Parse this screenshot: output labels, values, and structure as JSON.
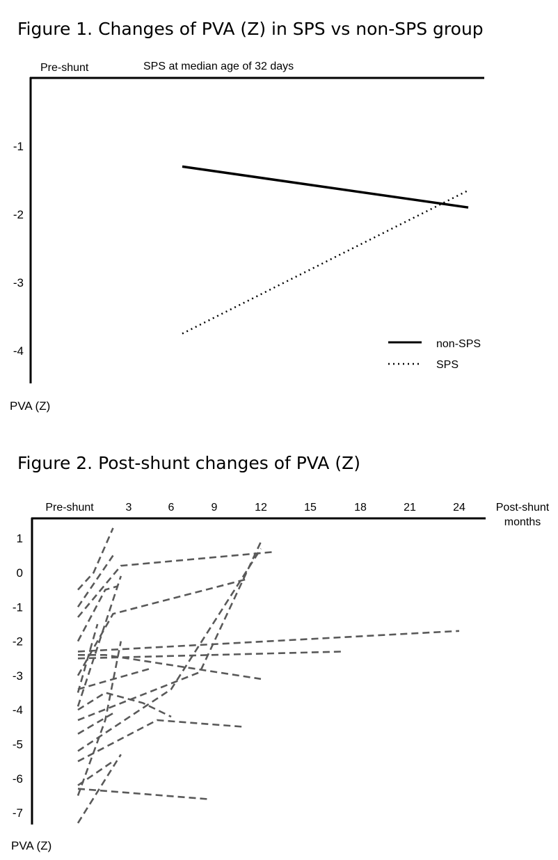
{
  "figure1": {
    "title": "Figure 1. Changes of PVA (Z) in SPS vs non-SPS group"
  },
  "figure2": {
    "title": "Figure 2. Post-shunt changes of PVA (Z)"
  },
  "chart_data": [
    {
      "type": "line",
      "top_labels": [
        "Pre-shunt",
        "SPS at median age of 32 days"
      ],
      "ylabel": "PVA (Z)",
      "y_ticks": [
        -1,
        -2,
        -3,
        -4
      ],
      "ylim": [
        -4.4,
        0.0
      ],
      "grid": false,
      "legend": "bottom-right",
      "series": [
        {
          "name": "non-SPS",
          "style": "solid",
          "points": [
            [
              1,
              -1.3
            ],
            [
              4,
              -1.9
            ]
          ]
        },
        {
          "name": "SPS",
          "style": "dotted",
          "points": [
            [
              1,
              -3.75
            ],
            [
              4,
              -1.65
            ]
          ]
        }
      ]
    },
    {
      "type": "line",
      "x_tick_labels": [
        "Pre-shunt",
        "3",
        "6",
        "9",
        "12",
        "15",
        "18",
        "21",
        "24"
      ],
      "x_ticks": [
        0,
        3,
        6,
        9,
        12,
        15,
        18,
        21,
        24
      ],
      "xlabel": "Post-shunt months",
      "ylabel": "PVA (Z)",
      "y_ticks": [
        1,
        0,
        -1,
        -2,
        -3,
        -4,
        -5,
        -6,
        -7
      ],
      "ylim": [
        -7.3,
        1.6
      ],
      "grid": false,
      "series_style": "dashed",
      "series": [
        {
          "points": [
            [
              -3.5,
              -0.5
            ],
            [
              -1.5,
              0.0
            ],
            [
              1.0,
              1.3
            ]
          ]
        },
        {
          "points": [
            [
              -3.5,
              -1.0
            ],
            [
              1.0,
              0.5
            ]
          ]
        },
        {
          "points": [
            [
              -3.5,
              -1.3
            ],
            [
              2.0,
              0.2
            ],
            [
              12.7,
              0.6
            ]
          ]
        },
        {
          "points": [
            [
              -3.5,
              -2.0
            ],
            [
              0.0,
              -0.5
            ],
            [
              1.5,
              -0.4
            ]
          ]
        },
        {
          "points": [
            [
              -3.5,
              -3.0
            ],
            [
              1.0,
              -1.2
            ],
            [
              11.0,
              -0.2
            ]
          ]
        },
        {
          "points": [
            [
              -3.5,
              -3.5
            ],
            [
              -1.0,
              -1.5
            ]
          ]
        },
        {
          "points": [
            [
              -3.5,
              -3.9
            ],
            [
              2.0,
              -0.1
            ]
          ]
        },
        {
          "points": [
            [
              -3.5,
              -4.3
            ],
            [
              8.0,
              -2.9
            ],
            [
              12.0,
              0.9
            ]
          ]
        },
        {
          "points": [
            [
              -3.5,
              -2.3
            ],
            [
              24.0,
              -1.7
            ]
          ]
        },
        {
          "points": [
            [
              -3.5,
              -2.4
            ],
            [
              0.0,
              -2.4
            ],
            [
              12.0,
              -3.1
            ]
          ]
        },
        {
          "points": [
            [
              -3.5,
              -2.5
            ],
            [
              17.0,
              -2.3
            ]
          ]
        },
        {
          "points": [
            [
              -3.5,
              -3.4
            ],
            [
              4.5,
              -2.8
            ]
          ]
        },
        {
          "points": [
            [
              -3.5,
              -4.0
            ],
            [
              0.0,
              -3.5
            ],
            [
              4.0,
              -3.8
            ],
            [
              6.0,
              -4.2
            ]
          ]
        },
        {
          "points": [
            [
              -3.5,
              -4.7
            ],
            [
              1.0,
              -4.1
            ]
          ]
        },
        {
          "points": [
            [
              -3.5,
              -5.2
            ],
            [
              6.0,
              -3.4
            ],
            [
              12.0,
              0.7
            ]
          ]
        },
        {
          "points": [
            [
              -3.5,
              -5.5
            ],
            [
              5.0,
              -4.3
            ],
            [
              11.0,
              -4.5
            ]
          ]
        },
        {
          "points": [
            [
              -3.5,
              -6.2
            ],
            [
              1.0,
              -5.5
            ]
          ]
        },
        {
          "points": [
            [
              -3.5,
              -6.3
            ],
            [
              8.5,
              -6.6
            ]
          ]
        },
        {
          "points": [
            [
              -3.5,
              -7.3
            ],
            [
              2.0,
              -5.3
            ]
          ]
        },
        {
          "points": [
            [
              -3.5,
              -6.5
            ],
            [
              0.0,
              -4.3
            ],
            [
              2.0,
              -2.0
            ]
          ]
        }
      ]
    }
  ]
}
